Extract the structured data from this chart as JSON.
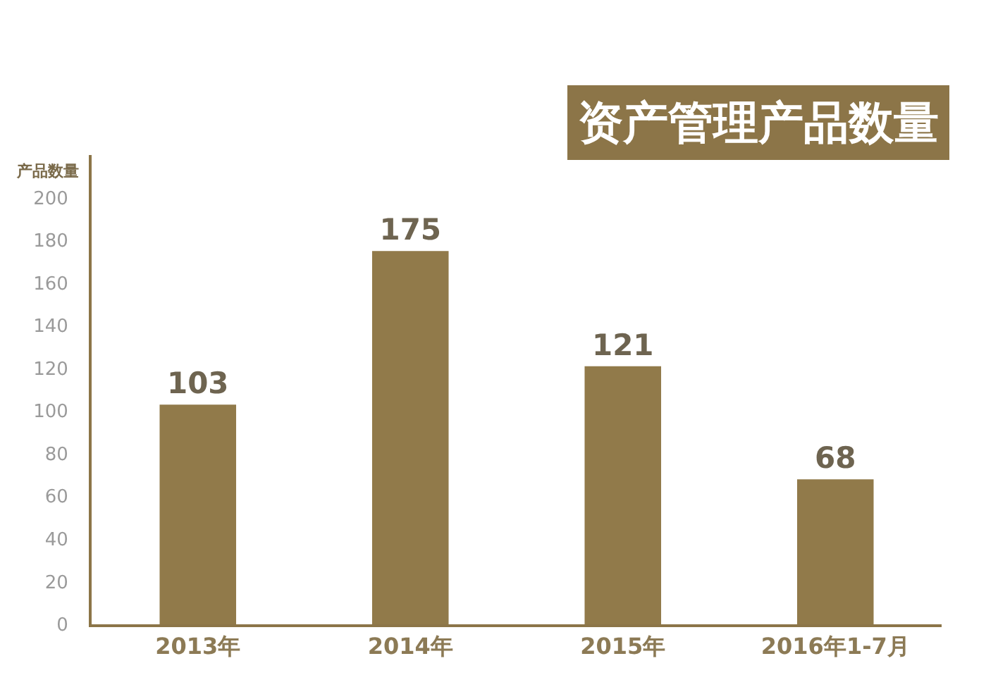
{
  "chart_data": {
    "type": "bar",
    "title": "资产管理产品数量",
    "ylabel": "产品数量",
    "categories": [
      "2013年",
      "2014年",
      "2015年",
      "2016年1-7月"
    ],
    "values": [
      103,
      175,
      121,
      68
    ],
    "color": "#917a4a",
    "ylim": [
      0,
      220
    ],
    "yticks": [
      0,
      20,
      40,
      60,
      80,
      100,
      120,
      140,
      160,
      180,
      200
    ],
    "data_labels": true
  }
}
